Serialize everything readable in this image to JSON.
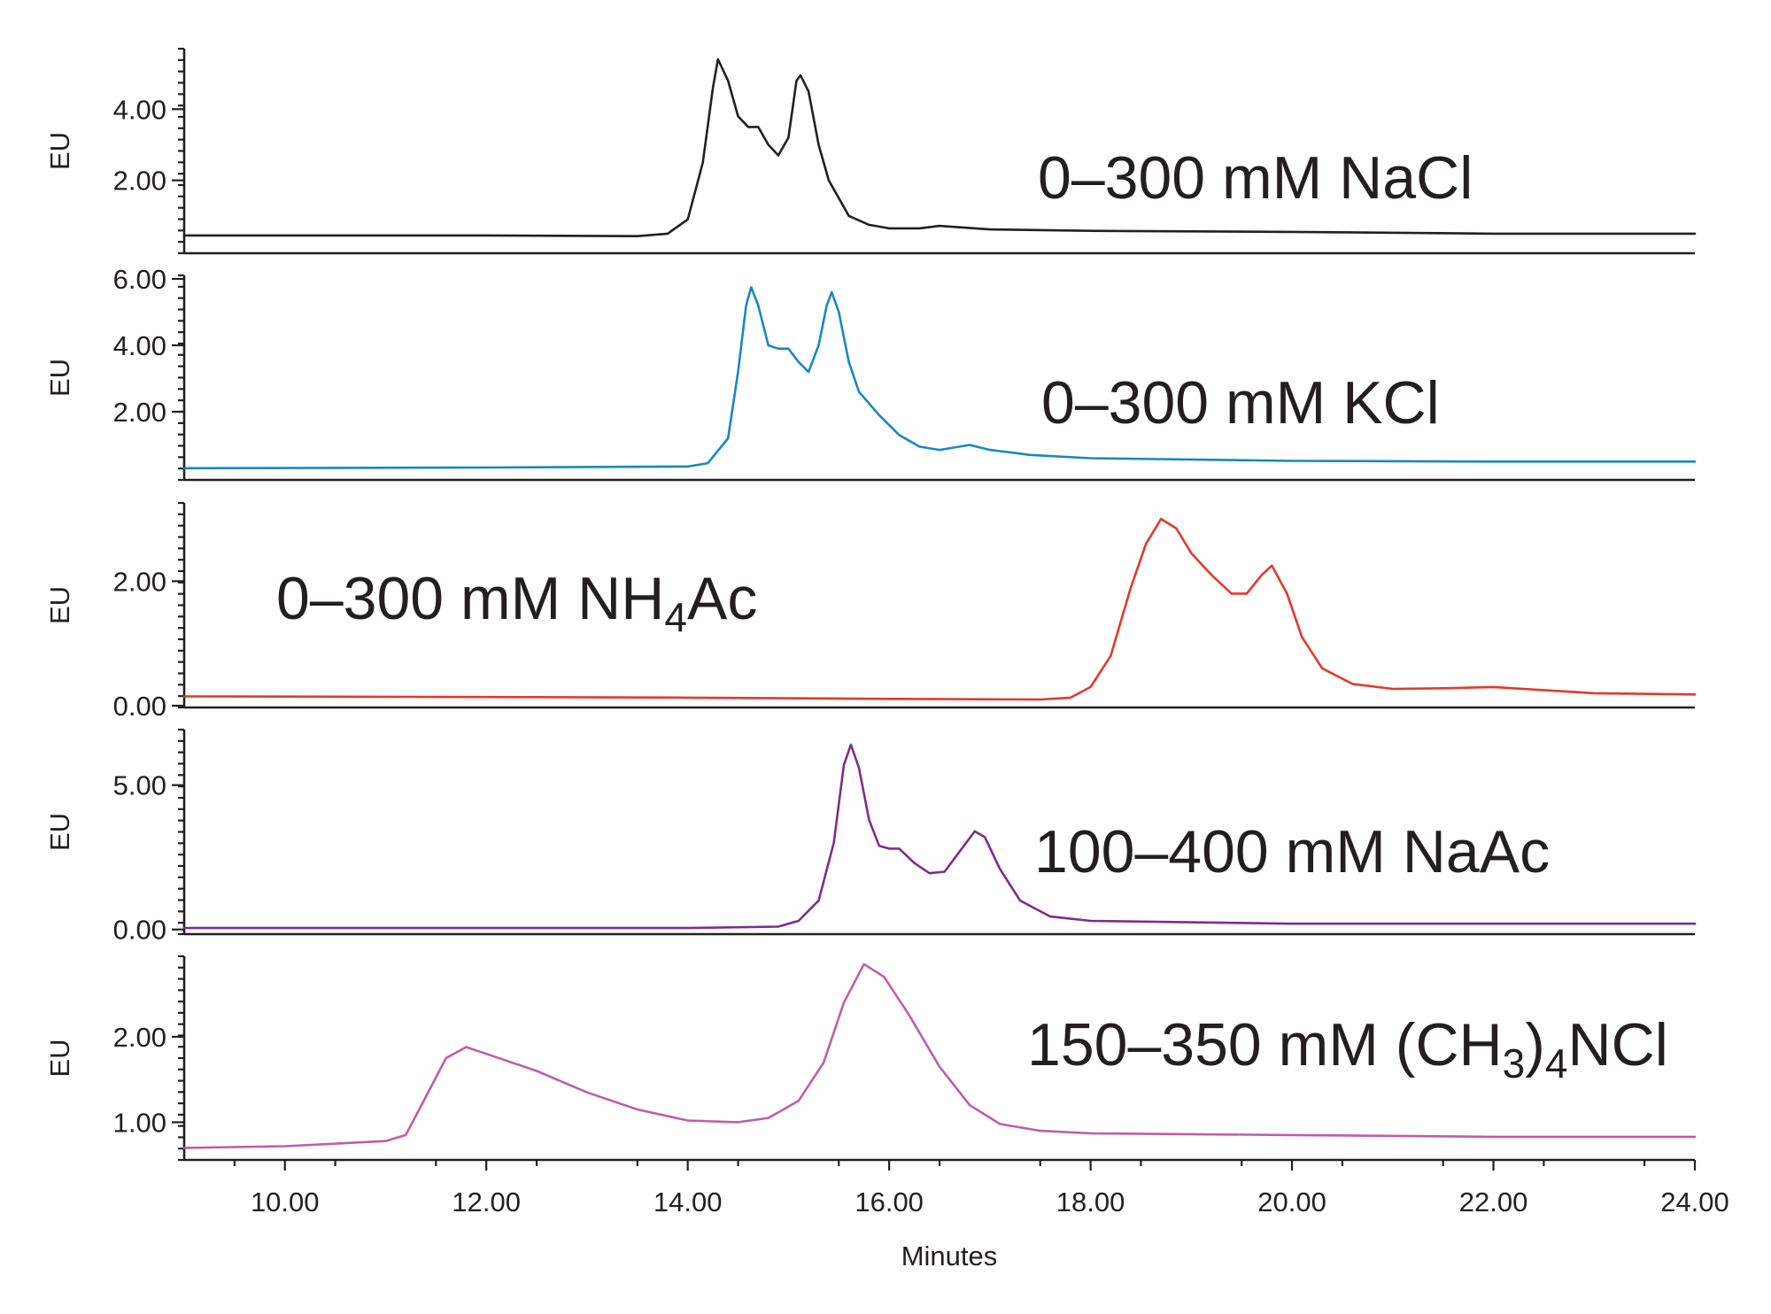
{
  "chart_data": {
    "type": "line",
    "xlabel": "Minutes",
    "x_ticks": [
      "10.00",
      "12.00",
      "14.00",
      "16.00",
      "18.00",
      "20.00",
      "22.00",
      "24.00"
    ],
    "xlim": [
      9.0,
      24.0
    ],
    "x_tick_values": [
      10,
      12,
      14,
      16,
      18,
      20,
      22,
      24
    ],
    "panels": [
      {
        "label": {
          "main": "0–300 mM NaCl"
        },
        "ylabel": "EU",
        "color": "#231f20",
        "ylim": [
          0.0,
          5.6
        ],
        "y_ticks": [
          {
            "value": 4.0,
            "label": "4.00"
          },
          {
            "value": 2.0,
            "label": "2.00"
          }
        ],
        "points": [
          [
            9.0,
            0.45
          ],
          [
            12.0,
            0.45
          ],
          [
            13.5,
            0.43
          ],
          [
            13.8,
            0.5
          ],
          [
            14.0,
            0.9
          ],
          [
            14.15,
            2.5
          ],
          [
            14.25,
            4.6
          ],
          [
            14.3,
            5.4
          ],
          [
            14.4,
            4.8
          ],
          [
            14.5,
            3.8
          ],
          [
            14.6,
            3.5
          ],
          [
            14.7,
            3.5
          ],
          [
            14.8,
            3.0
          ],
          [
            14.9,
            2.7
          ],
          [
            15.0,
            3.2
          ],
          [
            15.08,
            4.8
          ],
          [
            15.12,
            4.95
          ],
          [
            15.2,
            4.5
          ],
          [
            15.3,
            3.0
          ],
          [
            15.4,
            2.0
          ],
          [
            15.6,
            1.0
          ],
          [
            15.8,
            0.75
          ],
          [
            16.0,
            0.65
          ],
          [
            16.3,
            0.65
          ],
          [
            16.5,
            0.72
          ],
          [
            16.7,
            0.68
          ],
          [
            17.0,
            0.62
          ],
          [
            18.0,
            0.58
          ],
          [
            20.0,
            0.55
          ],
          [
            22.0,
            0.5
          ],
          [
            24.0,
            0.5
          ]
        ]
      },
      {
        "label": {
          "main": "0–300 mM KCl"
        },
        "ylabel": "EU",
        "color": "#1b87bd",
        "ylim": [
          0.0,
          6.0
        ],
        "y_ticks": [
          {
            "value": 6.0,
            "label": "6.00"
          },
          {
            "value": 4.0,
            "label": "4.00"
          },
          {
            "value": 2.0,
            "label": "2.00"
          }
        ],
        "points": [
          [
            9.0,
            0.3
          ],
          [
            12.0,
            0.32
          ],
          [
            14.0,
            0.35
          ],
          [
            14.2,
            0.45
          ],
          [
            14.4,
            1.2
          ],
          [
            14.5,
            3.2
          ],
          [
            14.58,
            5.2
          ],
          [
            14.63,
            5.75
          ],
          [
            14.7,
            5.2
          ],
          [
            14.8,
            4.0
          ],
          [
            14.9,
            3.9
          ],
          [
            15.0,
            3.9
          ],
          [
            15.1,
            3.5
          ],
          [
            15.2,
            3.2
          ],
          [
            15.3,
            4.0
          ],
          [
            15.38,
            5.2
          ],
          [
            15.43,
            5.6
          ],
          [
            15.5,
            5.0
          ],
          [
            15.6,
            3.5
          ],
          [
            15.7,
            2.6
          ],
          [
            15.9,
            1.9
          ],
          [
            16.1,
            1.3
          ],
          [
            16.3,
            0.95
          ],
          [
            16.5,
            0.85
          ],
          [
            16.7,
            0.95
          ],
          [
            16.8,
            1.0
          ],
          [
            17.0,
            0.85
          ],
          [
            17.4,
            0.7
          ],
          [
            18.0,
            0.6
          ],
          [
            20.0,
            0.52
          ],
          [
            22.0,
            0.5
          ],
          [
            24.0,
            0.5
          ]
        ]
      },
      {
        "label": {
          "main": "0–300 mM NH",
          "sub": "4",
          "tail": "Ac"
        },
        "ylabel": "EU",
        "color": "#e03a2d",
        "ylim": [
          0.0,
          3.2
        ],
        "y_ticks": [
          {
            "value": 2.0,
            "label": "2.00"
          },
          {
            "value": 0.0,
            "label": "0.00"
          }
        ],
        "points": [
          [
            9.0,
            0.15
          ],
          [
            12.0,
            0.14
          ],
          [
            14.0,
            0.13
          ],
          [
            16.0,
            0.11
          ],
          [
            17.5,
            0.1
          ],
          [
            17.8,
            0.13
          ],
          [
            18.0,
            0.3
          ],
          [
            18.2,
            0.8
          ],
          [
            18.4,
            1.9
          ],
          [
            18.55,
            2.6
          ],
          [
            18.7,
            3.0
          ],
          [
            18.85,
            2.85
          ],
          [
            19.0,
            2.45
          ],
          [
            19.2,
            2.1
          ],
          [
            19.4,
            1.8
          ],
          [
            19.55,
            1.8
          ],
          [
            19.7,
            2.1
          ],
          [
            19.8,
            2.25
          ],
          [
            19.95,
            1.8
          ],
          [
            20.1,
            1.1
          ],
          [
            20.3,
            0.6
          ],
          [
            20.6,
            0.35
          ],
          [
            21.0,
            0.27
          ],
          [
            21.5,
            0.28
          ],
          [
            22.0,
            0.3
          ],
          [
            22.5,
            0.25
          ],
          [
            23.0,
            0.2
          ],
          [
            24.0,
            0.18
          ]
        ]
      },
      {
        "label": {
          "main": "100–400 mM NaAc"
        },
        "ylabel": "EU",
        "color": "#7d2d8a",
        "ylim": [
          -0.1,
          6.8
        ],
        "y_ticks": [
          {
            "value": 5.0,
            "label": "5.00"
          },
          {
            "value": 0.0,
            "label": "0.00"
          }
        ],
        "points": [
          [
            9.0,
            0.05
          ],
          [
            12.0,
            0.05
          ],
          [
            14.0,
            0.05
          ],
          [
            14.9,
            0.1
          ],
          [
            15.1,
            0.3
          ],
          [
            15.3,
            1.0
          ],
          [
            15.45,
            3.0
          ],
          [
            15.55,
            5.7
          ],
          [
            15.62,
            6.4
          ],
          [
            15.7,
            5.6
          ],
          [
            15.8,
            3.8
          ],
          [
            15.9,
            2.9
          ],
          [
            16.0,
            2.8
          ],
          [
            16.1,
            2.8
          ],
          [
            16.25,
            2.3
          ],
          [
            16.4,
            1.95
          ],
          [
            16.55,
            2.0
          ],
          [
            16.7,
            2.7
          ],
          [
            16.85,
            3.4
          ],
          [
            16.95,
            3.2
          ],
          [
            17.1,
            2.1
          ],
          [
            17.3,
            1.0
          ],
          [
            17.6,
            0.45
          ],
          [
            18.0,
            0.3
          ],
          [
            20.0,
            0.2
          ],
          [
            22.0,
            0.2
          ],
          [
            24.0,
            0.2
          ]
        ]
      },
      {
        "label": {
          "main": "150–350 mM (CH",
          "sub": "3",
          "mid": ")",
          "sub2": "4",
          "tail": "NCl"
        },
        "ylabel": "EU",
        "color": "#bf5ea7",
        "ylim": [
          0.58,
          2.9
        ],
        "y_ticks": [
          {
            "value": 2.0,
            "label": "2.00"
          },
          {
            "value": 1.0,
            "label": "1.00"
          }
        ],
        "points": [
          [
            9.0,
            0.7
          ],
          [
            10.0,
            0.72
          ],
          [
            11.0,
            0.78
          ],
          [
            11.2,
            0.85
          ],
          [
            11.4,
            1.3
          ],
          [
            11.6,
            1.75
          ],
          [
            11.8,
            1.88
          ],
          [
            12.0,
            1.8
          ],
          [
            12.5,
            1.6
          ],
          [
            13.0,
            1.35
          ],
          [
            13.5,
            1.15
          ],
          [
            14.0,
            1.02
          ],
          [
            14.5,
            1.0
          ],
          [
            14.8,
            1.05
          ],
          [
            15.1,
            1.25
          ],
          [
            15.35,
            1.7
          ],
          [
            15.55,
            2.4
          ],
          [
            15.75,
            2.85
          ],
          [
            15.95,
            2.7
          ],
          [
            16.2,
            2.25
          ],
          [
            16.5,
            1.65
          ],
          [
            16.8,
            1.2
          ],
          [
            17.1,
            0.98
          ],
          [
            17.5,
            0.9
          ],
          [
            18.0,
            0.87
          ],
          [
            20.0,
            0.85
          ],
          [
            22.0,
            0.83
          ],
          [
            24.0,
            0.83
          ]
        ]
      }
    ]
  }
}
